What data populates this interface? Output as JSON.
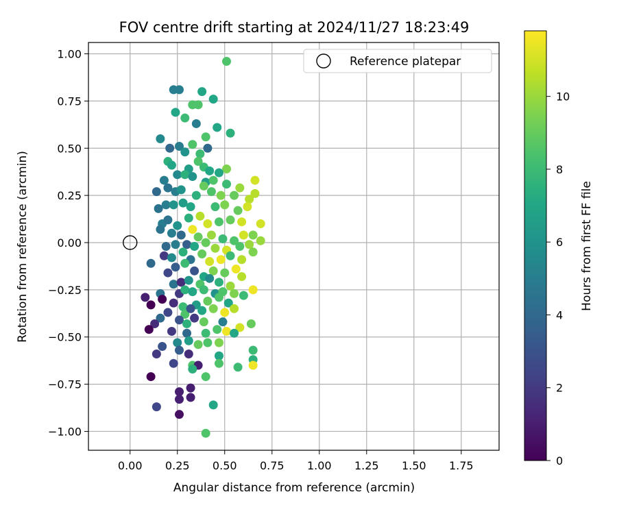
{
  "chart_data": {
    "type": "scatter",
    "title": "FOV centre drift starting at 2024/11/27 18:23:49",
    "xlabel": "Angular distance from reference (arcmin)",
    "ylabel": "Rotation from reference (arcmin)",
    "xlim": [
      -0.22,
      1.95
    ],
    "ylim": [
      -1.1,
      1.06
    ],
    "xticks": [
      0.0,
      0.25,
      0.5,
      0.75,
      1.0,
      1.25,
      1.5,
      1.75
    ],
    "xtick_labels": [
      "0.00",
      "0.25",
      "0.50",
      "0.75",
      "1.00",
      "1.25",
      "1.50",
      "1.75"
    ],
    "yticks": [
      1.0,
      0.75,
      0.5,
      0.25,
      0.0,
      -0.25,
      -0.5,
      -0.75,
      -1.0
    ],
    "ytick_labels": [
      "1.00",
      "0.75",
      "0.50",
      "0.25",
      "0.00",
      "−0.25",
      "−0.50",
      "−0.75",
      "−1.00"
    ],
    "grid": true,
    "legend": {
      "placement": "top-right",
      "entries": [
        "Reference platepar"
      ]
    },
    "reference_point": {
      "x": 0.0,
      "y": 0.0,
      "label": "Reference platepar"
    },
    "colorbar": {
      "label": "Hours from first FF file",
      "colormap": "viridis",
      "range": [
        0,
        11.8
      ],
      "ticks": [
        0,
        2,
        4,
        6,
        8,
        10
      ],
      "tick_labels": [
        "0",
        "2",
        "4",
        "6",
        "8",
        "10"
      ]
    },
    "points": [
      {
        "x": 0.51,
        "y": 0.96,
        "c": 8.5
      },
      {
        "x": 0.23,
        "y": 0.81,
        "c": 5.0
      },
      {
        "x": 0.26,
        "y": 0.81,
        "c": 5.0
      },
      {
        "x": 0.38,
        "y": 0.8,
        "c": 7.0
      },
      {
        "x": 0.44,
        "y": 0.76,
        "c": 7.0
      },
      {
        "x": 0.33,
        "y": 0.73,
        "c": 8.5
      },
      {
        "x": 0.36,
        "y": 0.73,
        "c": 8.5
      },
      {
        "x": 0.24,
        "y": 0.69,
        "c": 7.0
      },
      {
        "x": 0.29,
        "y": 0.66,
        "c": 8.0
      },
      {
        "x": 0.35,
        "y": 0.63,
        "c": 5.0
      },
      {
        "x": 0.46,
        "y": 0.61,
        "c": 7.0
      },
      {
        "x": 0.53,
        "y": 0.58,
        "c": 7.5
      },
      {
        "x": 0.16,
        "y": 0.55,
        "c": 5.5
      },
      {
        "x": 0.4,
        "y": 0.56,
        "c": 8.5
      },
      {
        "x": 0.21,
        "y": 0.5,
        "c": 4.0
      },
      {
        "x": 0.26,
        "y": 0.51,
        "c": 5.0
      },
      {
        "x": 0.33,
        "y": 0.52,
        "c": 8.5
      },
      {
        "x": 0.41,
        "y": 0.5,
        "c": 4.0
      },
      {
        "x": 0.29,
        "y": 0.48,
        "c": 6.0
      },
      {
        "x": 0.37,
        "y": 0.47,
        "c": 8.0
      },
      {
        "x": 0.2,
        "y": 0.43,
        "c": 7.5
      },
      {
        "x": 0.22,
        "y": 0.41,
        "c": 7.0
      },
      {
        "x": 0.36,
        "y": 0.43,
        "c": 8.5
      },
      {
        "x": 0.39,
        "y": 0.4,
        "c": 8.0
      },
      {
        "x": 0.31,
        "y": 0.39,
        "c": 6.5
      },
      {
        "x": 0.51,
        "y": 0.39,
        "c": 9.5
      },
      {
        "x": 0.25,
        "y": 0.36,
        "c": 5.5
      },
      {
        "x": 0.29,
        "y": 0.36,
        "c": 7.5
      },
      {
        "x": 0.42,
        "y": 0.38,
        "c": 7.0
      },
      {
        "x": 0.47,
        "y": 0.37,
        "c": 7.0
      },
      {
        "x": 0.18,
        "y": 0.33,
        "c": 5.0
      },
      {
        "x": 0.33,
        "y": 0.35,
        "c": 6.0
      },
      {
        "x": 0.4,
        "y": 0.32,
        "c": 6.5
      },
      {
        "x": 0.44,
        "y": 0.33,
        "c": 8.5
      },
      {
        "x": 0.51,
        "y": 0.31,
        "c": 8.0
      },
      {
        "x": 0.58,
        "y": 0.29,
        "c": 10.0
      },
      {
        "x": 0.66,
        "y": 0.33,
        "c": 11.0
      },
      {
        "x": 0.14,
        "y": 0.27,
        "c": 4.0
      },
      {
        "x": 0.2,
        "y": 0.29,
        "c": 4.5
      },
      {
        "x": 0.24,
        "y": 0.27,
        "c": 5.0
      },
      {
        "x": 0.27,
        "y": 0.28,
        "c": 6.0
      },
      {
        "x": 0.35,
        "y": 0.25,
        "c": 7.5
      },
      {
        "x": 0.39,
        "y": 0.3,
        "c": 9.0
      },
      {
        "x": 0.43,
        "y": 0.27,
        "c": 8.5
      },
      {
        "x": 0.48,
        "y": 0.25,
        "c": 9.5
      },
      {
        "x": 0.55,
        "y": 0.25,
        "c": 9.0
      },
      {
        "x": 0.63,
        "y": 0.23,
        "c": 10.5
      },
      {
        "x": 0.66,
        "y": 0.26,
        "c": 10.5
      },
      {
        "x": 0.15,
        "y": 0.18,
        "c": 4.5
      },
      {
        "x": 0.19,
        "y": 0.2,
        "c": 5.0
      },
      {
        "x": 0.23,
        "y": 0.2,
        "c": 6.0
      },
      {
        "x": 0.28,
        "y": 0.21,
        "c": 6.5
      },
      {
        "x": 0.32,
        "y": 0.19,
        "c": 7.0
      },
      {
        "x": 0.45,
        "y": 0.19,
        "c": 8.0
      },
      {
        "x": 0.5,
        "y": 0.2,
        "c": 9.5
      },
      {
        "x": 0.57,
        "y": 0.17,
        "c": 9.0
      },
      {
        "x": 0.62,
        "y": 0.19,
        "c": 11.0
      },
      {
        "x": 0.17,
        "y": 0.1,
        "c": 5.0
      },
      {
        "x": 0.2,
        "y": 0.12,
        "c": 4.5
      },
      {
        "x": 0.25,
        "y": 0.09,
        "c": 6.0
      },
      {
        "x": 0.31,
        "y": 0.13,
        "c": 7.5
      },
      {
        "x": 0.37,
        "y": 0.14,
        "c": 10.5
      },
      {
        "x": 0.41,
        "y": 0.1,
        "c": 11.0
      },
      {
        "x": 0.47,
        "y": 0.11,
        "c": 8.5
      },
      {
        "x": 0.53,
        "y": 0.12,
        "c": 9.0
      },
      {
        "x": 0.59,
        "y": 0.11,
        "c": 11.0
      },
      {
        "x": 0.69,
        "y": 0.1,
        "c": 11.0
      },
      {
        "x": 0.16,
        "y": 0.07,
        "c": 4.5
      },
      {
        "x": 0.22,
        "y": 0.05,
        "c": 5.0
      },
      {
        "x": 0.27,
        "y": 0.04,
        "c": 4.0
      },
      {
        "x": 0.33,
        "y": 0.07,
        "c": 11.5
      },
      {
        "x": 0.36,
        "y": 0.03,
        "c": 9.0
      },
      {
        "x": 0.43,
        "y": 0.04,
        "c": 10.0
      },
      {
        "x": 0.49,
        "y": 0.02,
        "c": 8.0
      },
      {
        "x": 0.55,
        "y": 0.01,
        "c": 8.5
      },
      {
        "x": 0.6,
        "y": 0.04,
        "c": 11.0
      },
      {
        "x": 0.65,
        "y": 0.04,
        "c": 9.5
      },
      {
        "x": 0.69,
        "y": 0.01,
        "c": 10.0
      },
      {
        "x": 0.19,
        "y": -0.02,
        "c": 4.0
      },
      {
        "x": 0.24,
        "y": -0.01,
        "c": 5.0
      },
      {
        "x": 0.3,
        "y": -0.01,
        "c": 3.5
      },
      {
        "x": 0.34,
        "y": -0.02,
        "c": 7.0
      },
      {
        "x": 0.4,
        "y": 0.0,
        "c": 9.0
      },
      {
        "x": 0.45,
        "y": -0.03,
        "c": 10.0
      },
      {
        "x": 0.51,
        "y": -0.04,
        "c": 11.0
      },
      {
        "x": 0.58,
        "y": -0.02,
        "c": 8.5
      },
      {
        "x": 0.63,
        "y": -0.01,
        "c": 10.0
      },
      {
        "x": 0.11,
        "y": -0.11,
        "c": 4.0
      },
      {
        "x": 0.18,
        "y": -0.07,
        "c": 2.0
      },
      {
        "x": 0.22,
        "y": -0.08,
        "c": 5.5
      },
      {
        "x": 0.28,
        "y": -0.05,
        "c": 7.5
      },
      {
        "x": 0.32,
        "y": -0.09,
        "c": 4.5
      },
      {
        "x": 0.38,
        "y": -0.06,
        "c": 9.0
      },
      {
        "x": 0.42,
        "y": -0.1,
        "c": 11.0
      },
      {
        "x": 0.48,
        "y": -0.09,
        "c": 11.5
      },
      {
        "x": 0.53,
        "y": -0.07,
        "c": 8.0
      },
      {
        "x": 0.59,
        "y": -0.09,
        "c": 10.5
      },
      {
        "x": 0.65,
        "y": -0.05,
        "c": 9.5
      },
      {
        "x": 0.2,
        "y": -0.16,
        "c": 2.5
      },
      {
        "x": 0.24,
        "y": -0.13,
        "c": 3.5
      },
      {
        "x": 0.29,
        "y": -0.11,
        "c": 8.0
      },
      {
        "x": 0.34,
        "y": -0.15,
        "c": 3.0
      },
      {
        "x": 0.39,
        "y": -0.18,
        "c": 7.0
      },
      {
        "x": 0.44,
        "y": -0.15,
        "c": 9.5
      },
      {
        "x": 0.5,
        "y": -0.16,
        "c": 9.0
      },
      {
        "x": 0.56,
        "y": -0.14,
        "c": 11.5
      },
      {
        "x": 0.59,
        "y": -0.18,
        "c": 10.5
      },
      {
        "x": 0.23,
        "y": -0.22,
        "c": 4.5
      },
      {
        "x": 0.27,
        "y": -0.21,
        "c": 1.5
      },
      {
        "x": 0.31,
        "y": -0.2,
        "c": 6.0
      },
      {
        "x": 0.37,
        "y": -0.22,
        "c": 8.5
      },
      {
        "x": 0.42,
        "y": -0.19,
        "c": 5.5
      },
      {
        "x": 0.47,
        "y": -0.21,
        "c": 7.5
      },
      {
        "x": 0.53,
        "y": -0.23,
        "c": 10.0
      },
      {
        "x": 0.65,
        "y": -0.25,
        "c": 11.5
      },
      {
        "x": 0.16,
        "y": -0.27,
        "c": 4.5
      },
      {
        "x": 0.26,
        "y": -0.27,
        "c": 2.0
      },
      {
        "x": 0.29,
        "y": -0.25,
        "c": 7.5
      },
      {
        "x": 0.33,
        "y": -0.26,
        "c": 7.0
      },
      {
        "x": 0.39,
        "y": -0.25,
        "c": 8.0
      },
      {
        "x": 0.45,
        "y": -0.27,
        "c": 6.0
      },
      {
        "x": 0.49,
        "y": -0.26,
        "c": 8.5
      },
      {
        "x": 0.55,
        "y": -0.27,
        "c": 9.5
      },
      {
        "x": 0.6,
        "y": -0.28,
        "c": 8.0
      },
      {
        "x": 0.08,
        "y": -0.29,
        "c": 1.0
      },
      {
        "x": 0.17,
        "y": -0.3,
        "c": 0.0
      },
      {
        "x": 0.23,
        "y": -0.32,
        "c": 1.5
      },
      {
        "x": 0.28,
        "y": -0.34,
        "c": 8.0
      },
      {
        "x": 0.35,
        "y": -0.33,
        "c": 6.5
      },
      {
        "x": 0.41,
        "y": -0.31,
        "c": 9.0
      },
      {
        "x": 0.47,
        "y": -0.29,
        "c": 8.5
      },
      {
        "x": 0.52,
        "y": -0.32,
        "c": 7.0
      },
      {
        "x": 0.11,
        "y": -0.33,
        "c": 0.0
      },
      {
        "x": 0.2,
        "y": -0.37,
        "c": 2.5
      },
      {
        "x": 0.29,
        "y": -0.38,
        "c": 8.5
      },
      {
        "x": 0.32,
        "y": -0.35,
        "c": 3.0
      },
      {
        "x": 0.38,
        "y": -0.36,
        "c": 7.0
      },
      {
        "x": 0.44,
        "y": -0.35,
        "c": 9.5
      },
      {
        "x": 0.5,
        "y": -0.37,
        "c": 11.5
      },
      {
        "x": 0.55,
        "y": -0.35,
        "c": 10.5
      },
      {
        "x": 0.16,
        "y": -0.4,
        "c": 4.0
      },
      {
        "x": 0.26,
        "y": -0.41,
        "c": 3.0
      },
      {
        "x": 0.34,
        "y": -0.4,
        "c": 2.0
      },
      {
        "x": 0.13,
        "y": -0.43,
        "c": 1.5
      },
      {
        "x": 0.3,
        "y": -0.43,
        "c": 7.5
      },
      {
        "x": 0.39,
        "y": -0.42,
        "c": 9.0
      },
      {
        "x": 0.49,
        "y": -0.42,
        "c": 5.0
      },
      {
        "x": 0.58,
        "y": -0.45,
        "c": 11.0
      },
      {
        "x": 0.64,
        "y": -0.43,
        "c": 9.0
      },
      {
        "x": 0.1,
        "y": -0.46,
        "c": 0.0
      },
      {
        "x": 0.22,
        "y": -0.47,
        "c": 2.0
      },
      {
        "x": 0.3,
        "y": -0.48,
        "c": 4.0
      },
      {
        "x": 0.4,
        "y": -0.48,
        "c": 8.0
      },
      {
        "x": 0.46,
        "y": -0.46,
        "c": 8.5
      },
      {
        "x": 0.51,
        "y": -0.47,
        "c": 11.5
      },
      {
        "x": 0.55,
        "y": -0.48,
        "c": 7.0
      },
      {
        "x": 0.17,
        "y": -0.55,
        "c": 3.0
      },
      {
        "x": 0.25,
        "y": -0.53,
        "c": 5.5
      },
      {
        "x": 0.31,
        "y": -0.52,
        "c": 6.5
      },
      {
        "x": 0.36,
        "y": -0.54,
        "c": 9.0
      },
      {
        "x": 0.41,
        "y": -0.53,
        "c": 8.5
      },
      {
        "x": 0.47,
        "y": -0.53,
        "c": 9.5
      },
      {
        "x": 0.14,
        "y": -0.59,
        "c": 2.0
      },
      {
        "x": 0.26,
        "y": -0.57,
        "c": 3.5
      },
      {
        "x": 0.31,
        "y": -0.59,
        "c": 1.5
      },
      {
        "x": 0.47,
        "y": -0.6,
        "c": 7.0
      },
      {
        "x": 0.65,
        "y": -0.57,
        "c": 8.0
      },
      {
        "x": 0.23,
        "y": -0.64,
        "c": 2.5
      },
      {
        "x": 0.33,
        "y": -0.65,
        "c": 8.5
      },
      {
        "x": 0.36,
        "y": -0.65,
        "c": 1.0
      },
      {
        "x": 0.47,
        "y": -0.64,
        "c": 8.5
      },
      {
        "x": 0.57,
        "y": -0.66,
        "c": 8.0
      },
      {
        "x": 0.65,
        "y": -0.62,
        "c": 7.5
      },
      {
        "x": 0.65,
        "y": -0.65,
        "c": 11.5
      },
      {
        "x": 0.33,
        "y": -0.67,
        "c": 7.5
      },
      {
        "x": 0.11,
        "y": -0.71,
        "c": 0.0
      },
      {
        "x": 0.4,
        "y": -0.71,
        "c": 8.5
      },
      {
        "x": 0.26,
        "y": -0.79,
        "c": 1.0
      },
      {
        "x": 0.32,
        "y": -0.77,
        "c": 1.0
      },
      {
        "x": 0.26,
        "y": -0.83,
        "c": 1.0
      },
      {
        "x": 0.32,
        "y": -0.82,
        "c": 1.0
      },
      {
        "x": 0.14,
        "y": -0.87,
        "c": 2.5
      },
      {
        "x": 0.44,
        "y": -0.86,
        "c": 7.0
      },
      {
        "x": 0.26,
        "y": -0.91,
        "c": 0.5
      },
      {
        "x": 0.4,
        "y": -1.01,
        "c": 8.5
      }
    ]
  }
}
